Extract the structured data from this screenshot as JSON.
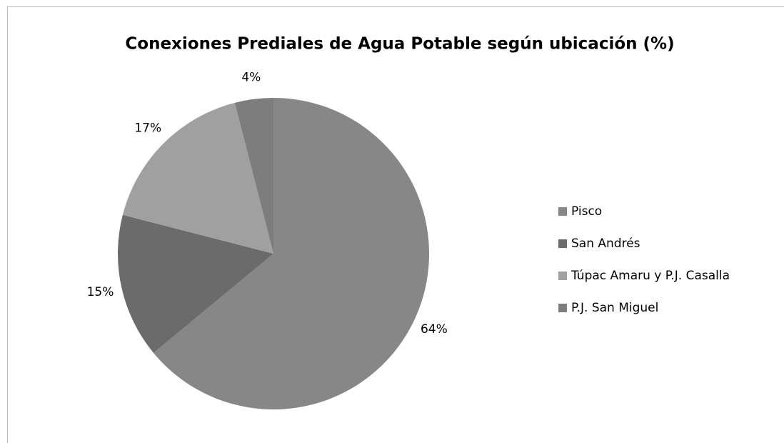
{
  "chart_data": {
    "type": "pie",
    "title": "Conexiones Prediales de Agua Potable según ubicación (%)",
    "categories": [
      "Pisco",
      "San Andrés",
      "Túpac Amaru y P.J. Casalla",
      "P.J. San Miguel"
    ],
    "values": [
      64,
      15,
      17,
      4
    ],
    "value_labels": [
      "64%",
      "15%",
      "17%",
      "4%"
    ],
    "colors": [
      "#878787",
      "#6b6b6b",
      "#a0a0a0",
      "#7d7d7d"
    ],
    "legend": "right"
  }
}
